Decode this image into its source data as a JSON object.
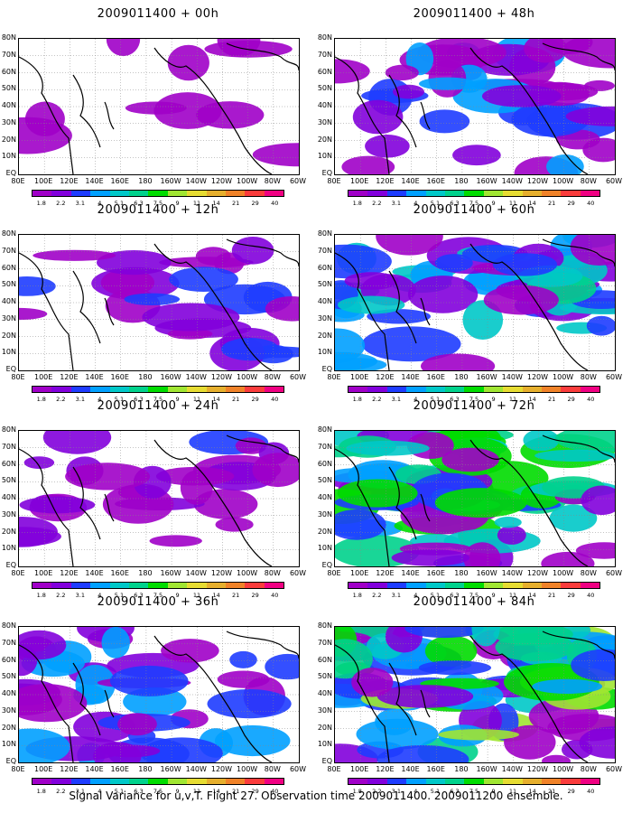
{
  "panels": [
    {
      "title": "2009011400 + 00h",
      "lead": "00h"
    },
    {
      "title": "2009011400 + 48h",
      "lead": "48h"
    },
    {
      "title": "2009011400 + 12h",
      "lead": "12h"
    },
    {
      "title": "2009011400 + 60h",
      "lead": "60h"
    },
    {
      "title": "2009011400 + 24h",
      "lead": "24h"
    },
    {
      "title": "2009011400 + 72h",
      "lead": "72h"
    },
    {
      "title": "2009011400 + 36h",
      "lead": "36h"
    },
    {
      "title": "2009011400 + 84h",
      "lead": "84h"
    }
  ],
  "lat_labels": [
    "80N",
    "70N",
    "60N",
    "50N",
    "40N",
    "30N",
    "20N",
    "10N",
    "EQ"
  ],
  "lon_labels": [
    "80E",
    "100E",
    "120E",
    "140E",
    "160E",
    "180",
    "160W",
    "140W",
    "120W",
    "100W",
    "80W",
    "60W"
  ],
  "colorbar": {
    "labels": [
      "1.8",
      "2.2",
      "3.1",
      "4",
      "5.1",
      "6.3",
      "7.5",
      "9",
      "11",
      "14",
      "21",
      "29",
      "40"
    ],
    "colors": [
      "#a000c8",
      "#8200dc",
      "#1e3cff",
      "#00a0ff",
      "#00c8c8",
      "#00d28c",
      "#00dc00",
      "#a0e632",
      "#e6dc32",
      "#e6af2d",
      "#f08228",
      "#fa3c3c",
      "#f00082"
    ]
  },
  "caption": "Signal Variance for u,v,T. Flight 27. Observation time 2009011400. 2009011200 ensemble."
}
